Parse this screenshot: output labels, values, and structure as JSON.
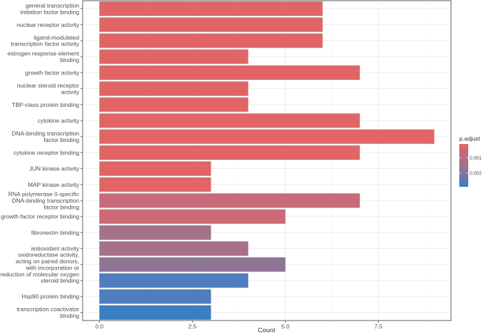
{
  "chart_data": {
    "type": "bar",
    "orientation": "horizontal",
    "categories": [
      [
        "general transcription",
        "initiation factor binding"
      ],
      [
        "nuclear receptor activity"
      ],
      [
        "ligand-modulated",
        "transcription factor activity"
      ],
      [
        "estrogen response element",
        "binding"
      ],
      [
        "growth factor activity"
      ],
      [
        "nuclear steroid receptor",
        "activity"
      ],
      [
        "TBP-class protein binding"
      ],
      [
        "cytokine activity"
      ],
      [
        "DNA-binding transcription",
        "factor binding"
      ],
      [
        "cytokine receptor binding"
      ],
      [
        "JUN kinase activity"
      ],
      [
        "MAP kinase activity"
      ],
      [
        "RNA polymerase II-specific",
        "DNA-binding transcription",
        "factor binding"
      ],
      [
        "growth factor receptor binding"
      ],
      [
        "fibronectin binding"
      ],
      [
        "antioxidant activity"
      ],
      [
        "oxidoreductase activity,",
        "acting on paired donors,",
        "with incorporation or",
        "reduction of molecular oxygen"
      ],
      [
        "steroid binding"
      ],
      [
        "Hsp90 protein binding"
      ],
      [
        "transcription coactivator",
        "binding"
      ]
    ],
    "values": [
      6,
      6,
      6,
      4,
      7,
      4,
      4,
      7,
      9,
      7,
      3,
      3,
      7,
      5,
      3,
      4,
      5,
      4,
      3,
      3
    ],
    "colors": [
      "#e06666",
      "#e06666",
      "#e06666",
      "#e06666",
      "#e06666",
      "#e06666",
      "#e06666",
      "#e06666",
      "#e06666",
      "#e06666",
      "#e06666",
      "#e06666",
      "#c96b7a",
      "#cc6a76",
      "#a6728a",
      "#a6728a",
      "#8e7596",
      "#4f7dbd",
      "#4f7dbd",
      "#3a7fc1"
    ],
    "xlabel": "Count",
    "ylabel": "",
    "xlim": [
      -0.45,
      9.45
    ],
    "xticks": [
      0,
      2.5,
      5,
      7.5
    ],
    "xtick_labels": [
      "0.0",
      "2.5",
      "5.0",
      "7.5"
    ],
    "grid": true,
    "legend": {
      "title": "p.adjust",
      "placement": "right",
      "ticks": [
        "0.001",
        "0.002"
      ],
      "tick_values": [
        0.001,
        0.002
      ],
      "range": [
        0.0001,
        0.0029
      ],
      "color_low": "#e06666",
      "color_mid": "#a0718c",
      "color_high": "#3a7fc1"
    }
  }
}
